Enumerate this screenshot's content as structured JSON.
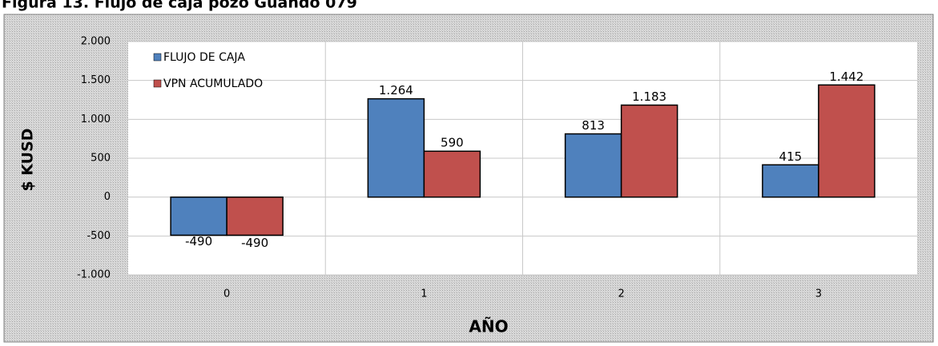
{
  "chart_data": {
    "type": "bar",
    "title": "Figura 13. Flujo de caja pozo Guando 079",
    "x_label": "AÑO",
    "y_label": "$ KUSD",
    "categories": [
      "0",
      "1",
      "2",
      "3"
    ],
    "series": [
      {
        "name": "FLUJO DE CAJA",
        "color": "#4f81bd",
        "values": [
          -490,
          1264,
          813,
          415
        ],
        "value_labels": [
          "-490",
          "1.264",
          "813",
          "415"
        ]
      },
      {
        "name": "VPN ACUMULADO",
        "color": "#c0504d",
        "values": [
          -490,
          590,
          1183,
          1442
        ],
        "value_labels": [
          "-490",
          "590",
          "1.183",
          "1.442"
        ]
      }
    ],
    "ylim": [
      -1000,
      2000
    ],
    "yticks": [
      {
        "value": -1000,
        "label": "-1.000"
      },
      -500,
      0,
      500,
      {
        "value": 1000,
        "label": "1.000"
      },
      {
        "value": 1500,
        "label": "1.500"
      },
      {
        "value": 2000,
        "label": "2.000"
      }
    ],
    "grid": true,
    "legend": "upper left"
  }
}
